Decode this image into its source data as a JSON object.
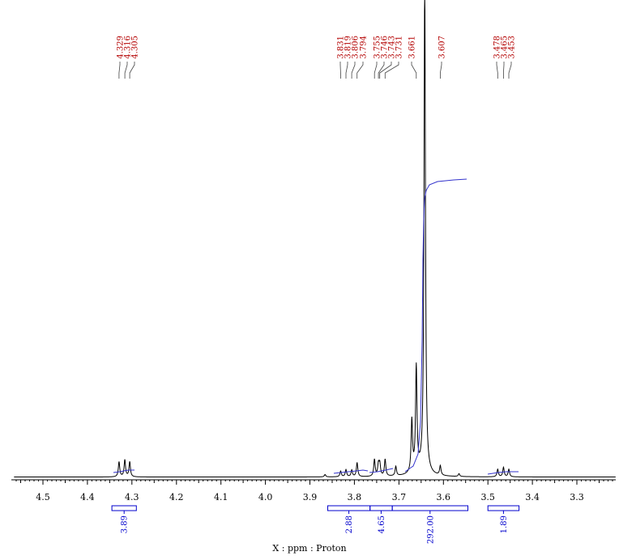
{
  "chart_data": {
    "type": "line",
    "title": "",
    "xlabel": "X : ppm : Proton",
    "ylabel": "",
    "xlim": [
      4.56,
      3.19
    ],
    "x_reversed": true,
    "grid": false,
    "ticks": [
      "4.5",
      "4.4",
      "4.3",
      "4.2",
      "4.1",
      "4.0",
      "3.9",
      "3.8",
      "3.7",
      "3.6",
      "3.5",
      "3.4",
      "3.3"
    ],
    "peak_labels": [
      "4.329",
      "4.316",
      "4.305",
      "3.831",
      "3.819",
      "3.806",
      "3.794",
      "3.755",
      "3.746",
      "3.743",
      "3.731",
      "3.661",
      "3.607",
      "3.478",
      "3.465",
      "3.453"
    ],
    "peaks": [
      {
        "ppm": 4.329,
        "height": 0.032
      },
      {
        "ppm": 4.316,
        "height": 0.036
      },
      {
        "ppm": 4.305,
        "height": 0.032
      },
      {
        "ppm": 3.866,
        "height": 0.005
      },
      {
        "ppm": 3.831,
        "height": 0.012
      },
      {
        "ppm": 3.819,
        "height": 0.015
      },
      {
        "ppm": 3.806,
        "height": 0.014
      },
      {
        "ppm": 3.794,
        "height": 0.03
      },
      {
        "ppm": 3.755,
        "height": 0.036
      },
      {
        "ppm": 3.746,
        "height": 0.025
      },
      {
        "ppm": 3.743,
        "height": 0.025
      },
      {
        "ppm": 3.731,
        "height": 0.036
      },
      {
        "ppm": 3.707,
        "height": 0.02
      },
      {
        "ppm": 3.671,
        "height": 0.11
      },
      {
        "ppm": 3.661,
        "height": 0.22
      },
      {
        "ppm": 3.642,
        "height": 1.05
      },
      {
        "ppm": 3.607,
        "height": 0.02
      },
      {
        "ppm": 3.565,
        "height": 0.006
      },
      {
        "ppm": 3.478,
        "height": 0.016
      },
      {
        "ppm": 3.465,
        "height": 0.02
      },
      {
        "ppm": 3.453,
        "height": 0.016
      }
    ],
    "integrals": [
      {
        "from": 4.345,
        "to": 4.29,
        "value": "3.89"
      },
      {
        "from": 3.86,
        "to": 3.765,
        "value": "2.88"
      },
      {
        "from": 3.765,
        "to": 3.715,
        "value": "4.65"
      },
      {
        "from": 3.715,
        "to": 3.545,
        "value": "292.00"
      },
      {
        "from": 3.5,
        "to": 3.43,
        "value": "1.89"
      }
    ]
  }
}
